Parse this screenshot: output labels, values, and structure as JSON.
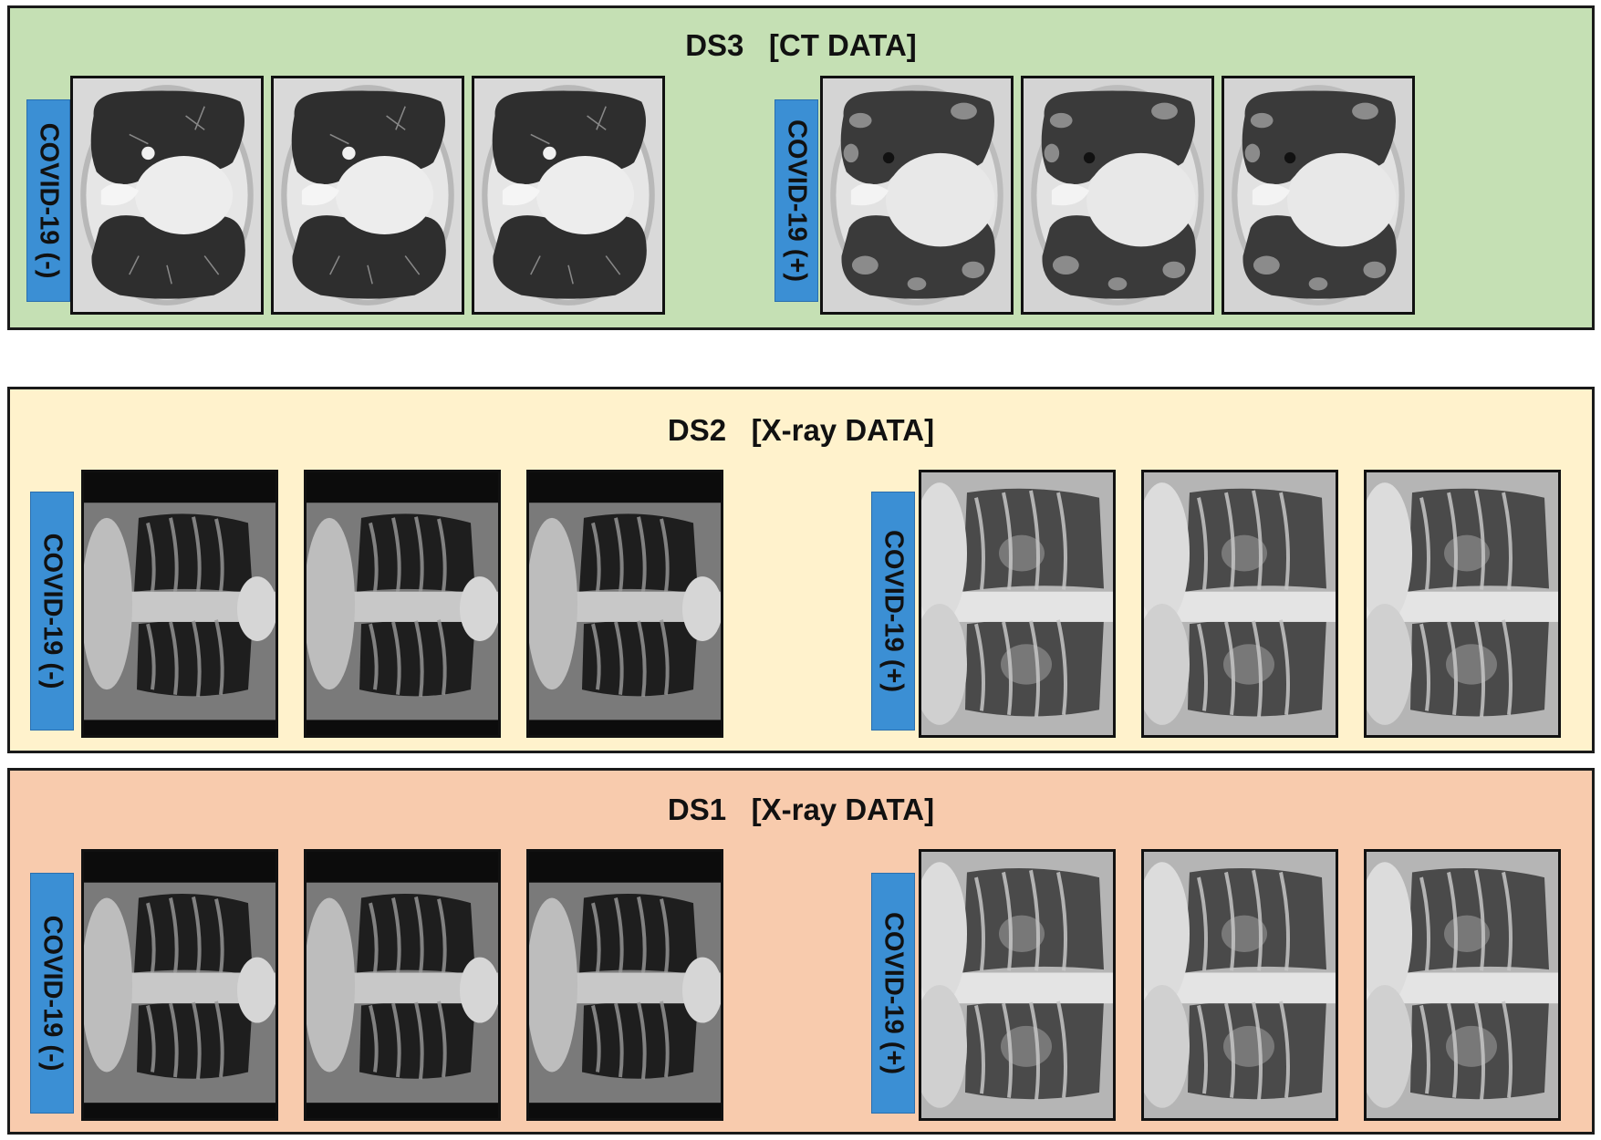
{
  "panels": {
    "ds3": {
      "title": "DS3   [CT DATA]",
      "background": "#c5e0b4",
      "negative_label": "COVID-19 (-)",
      "positive_label": "COVID-19 (+)"
    },
    "ds2": {
      "title": "DS2   [X-ray DATA]",
      "background": "#fff2cc",
      "negative_label": "COVID-19 (-)",
      "positive_label": "COVID-19 (+)"
    },
    "ds1": {
      "title": "DS1   [X-ray DATA]",
      "background": "#f8cbad",
      "negative_label": "COVID-19 (-)",
      "positive_label": "COVID-19 (+)"
    }
  },
  "label_color": "#3b8fd4",
  "image_types": {
    "ct": "ct-scan-image",
    "xray": "chest-xray-image"
  }
}
